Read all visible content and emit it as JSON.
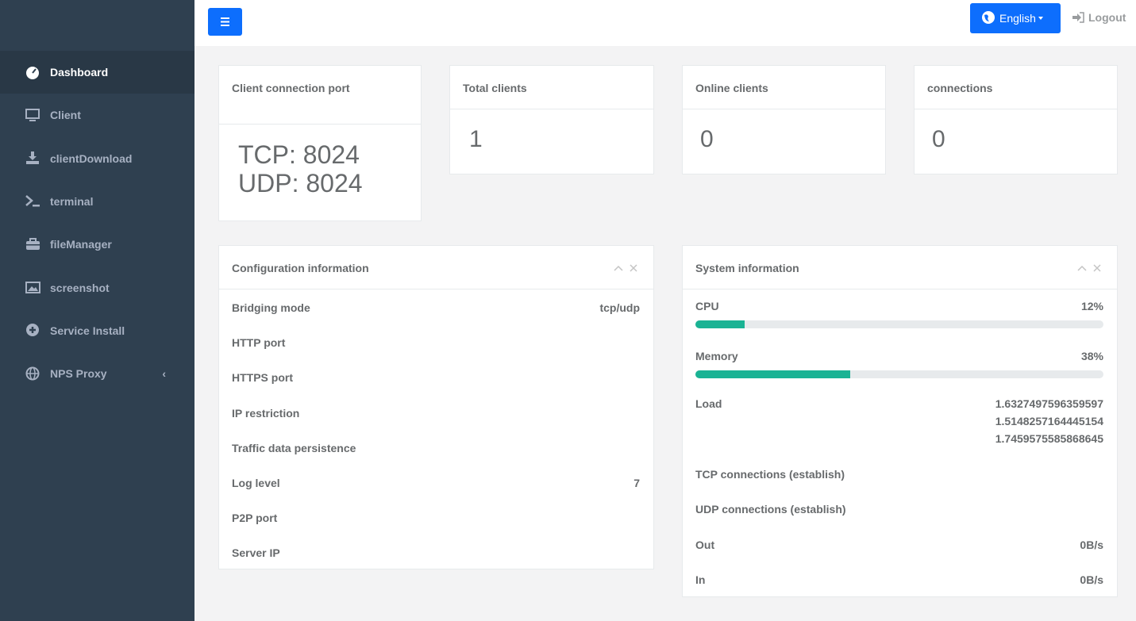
{
  "topbar": {
    "language": "English",
    "logout": "Logout"
  },
  "sidebar": {
    "items": [
      "Dashboard",
      "Client",
      "clientDownload",
      "terminal",
      "fileManager",
      "screenshot",
      "Service Install",
      "NPS Proxy"
    ],
    "active": 0
  },
  "cards": [
    {
      "title": "Client connection port",
      "lines": [
        "TCP: 8024",
        "UDP: 8024"
      ]
    },
    {
      "title": "Total clients",
      "lines": [
        1
      ]
    },
    {
      "title": "Online clients",
      "lines": [
        0
      ]
    },
    {
      "title": "connections",
      "lines": [
        0
      ]
    }
  ],
  "config": {
    "title": "Configuration information",
    "rows": [
      [
        "Bridging mode",
        "tcp/udp"
      ],
      [
        "HTTP port",
        ""
      ],
      [
        "HTTPS port",
        ""
      ],
      [
        "IP restriction",
        ""
      ],
      [
        "Traffic data persistence",
        ""
      ],
      [
        "Log level",
        "7"
      ],
      [
        "P2P port",
        ""
      ],
      [
        "Server IP",
        ""
      ]
    ]
  },
  "system": {
    "title": "System information",
    "bars": [
      {
        "label": "CPU",
        "value": 12,
        "value_label": "12%"
      },
      {
        "label": "Memory",
        "value": 38,
        "value_label": "38%"
      }
    ],
    "load": {
      "label": "Load",
      "values": [
        "1.6327497596359597",
        "1.5148257164445154",
        "1.7459575585868645"
      ]
    },
    "rows": [
      [
        "TCP connections (establish)",
        ""
      ],
      [
        "UDP connections (establish)",
        ""
      ],
      [
        "Out",
        "0B/s"
      ],
      [
        "In",
        "0B/s"
      ]
    ]
  }
}
